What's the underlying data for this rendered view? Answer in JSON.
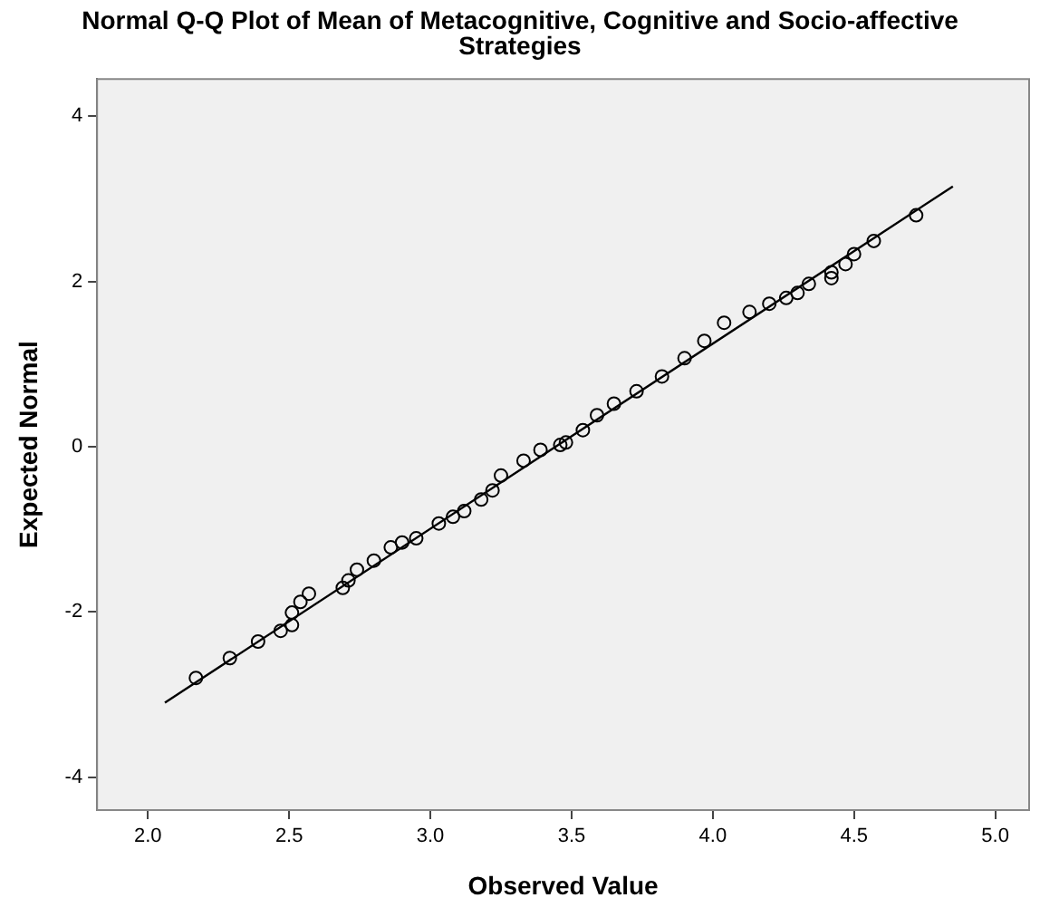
{
  "chart_data": {
    "type": "scatter",
    "title": "Normal Q-Q Plot of Mean of Metacognitive, Cognitive and Socio-affective Strategies",
    "xlabel": "Observed Value",
    "ylabel": "Expected Normal",
    "xlim": [
      1.82,
      5.12
    ],
    "ylim": [
      -4.4,
      4.45
    ],
    "xticks": [
      {
        "value": 2,
        "label": "2.0"
      },
      {
        "value": 2.5,
        "label": "2.5"
      },
      {
        "value": 3,
        "label": "3.0"
      },
      {
        "value": 3.5,
        "label": "3.5"
      },
      {
        "value": 4,
        "label": "4.0"
      },
      {
        "value": 4.5,
        "label": "4.5"
      },
      {
        "value": 5,
        "label": "5.0"
      }
    ],
    "yticks": [
      -4,
      -2,
      0,
      2,
      4
    ],
    "grid": false,
    "legend": false,
    "marker": "circle",
    "series": [
      {
        "type": "scatter",
        "color": "#000000",
        "x": [
          2.17,
          2.29,
          2.39,
          2.47,
          2.51,
          2.51,
          2.54,
          2.57,
          2.69,
          2.71,
          2.74,
          2.8,
          2.86,
          2.9,
          2.95,
          3.03,
          3.08,
          3.12,
          3.18,
          3.22,
          3.25,
          3.33,
          3.39,
          3.46,
          3.48,
          3.54,
          3.59,
          3.65,
          3.73,
          3.82,
          3.9,
          3.97,
          4.04,
          4.13,
          4.2,
          4.26,
          4.3,
          4.34,
          4.42,
          4.42,
          4.47,
          4.5,
          4.57,
          4.72
        ],
        "values": [
          -2.8,
          -2.56,
          -2.36,
          -2.23,
          -2.16,
          -2.01,
          -1.88,
          -1.78,
          -1.71,
          -1.62,
          -1.49,
          -1.38,
          -1.22,
          -1.16,
          -1.11,
          -0.93,
          -0.85,
          -0.78,
          -0.64,
          -0.53,
          -0.35,
          -0.17,
          -0.04,
          0.02,
          0.05,
          0.2,
          0.38,
          0.52,
          0.67,
          0.85,
          1.07,
          1.28,
          1.5,
          1.63,
          1.73,
          1.8,
          1.86,
          1.97,
          2.04,
          2.11,
          2.21,
          2.33,
          2.49,
          2.8
        ]
      },
      {
        "type": "line",
        "color": "#000000",
        "marker": "none",
        "x": [
          2.06,
          4.85
        ],
        "values": [
          -3.1,
          3.15
        ]
      }
    ]
  }
}
